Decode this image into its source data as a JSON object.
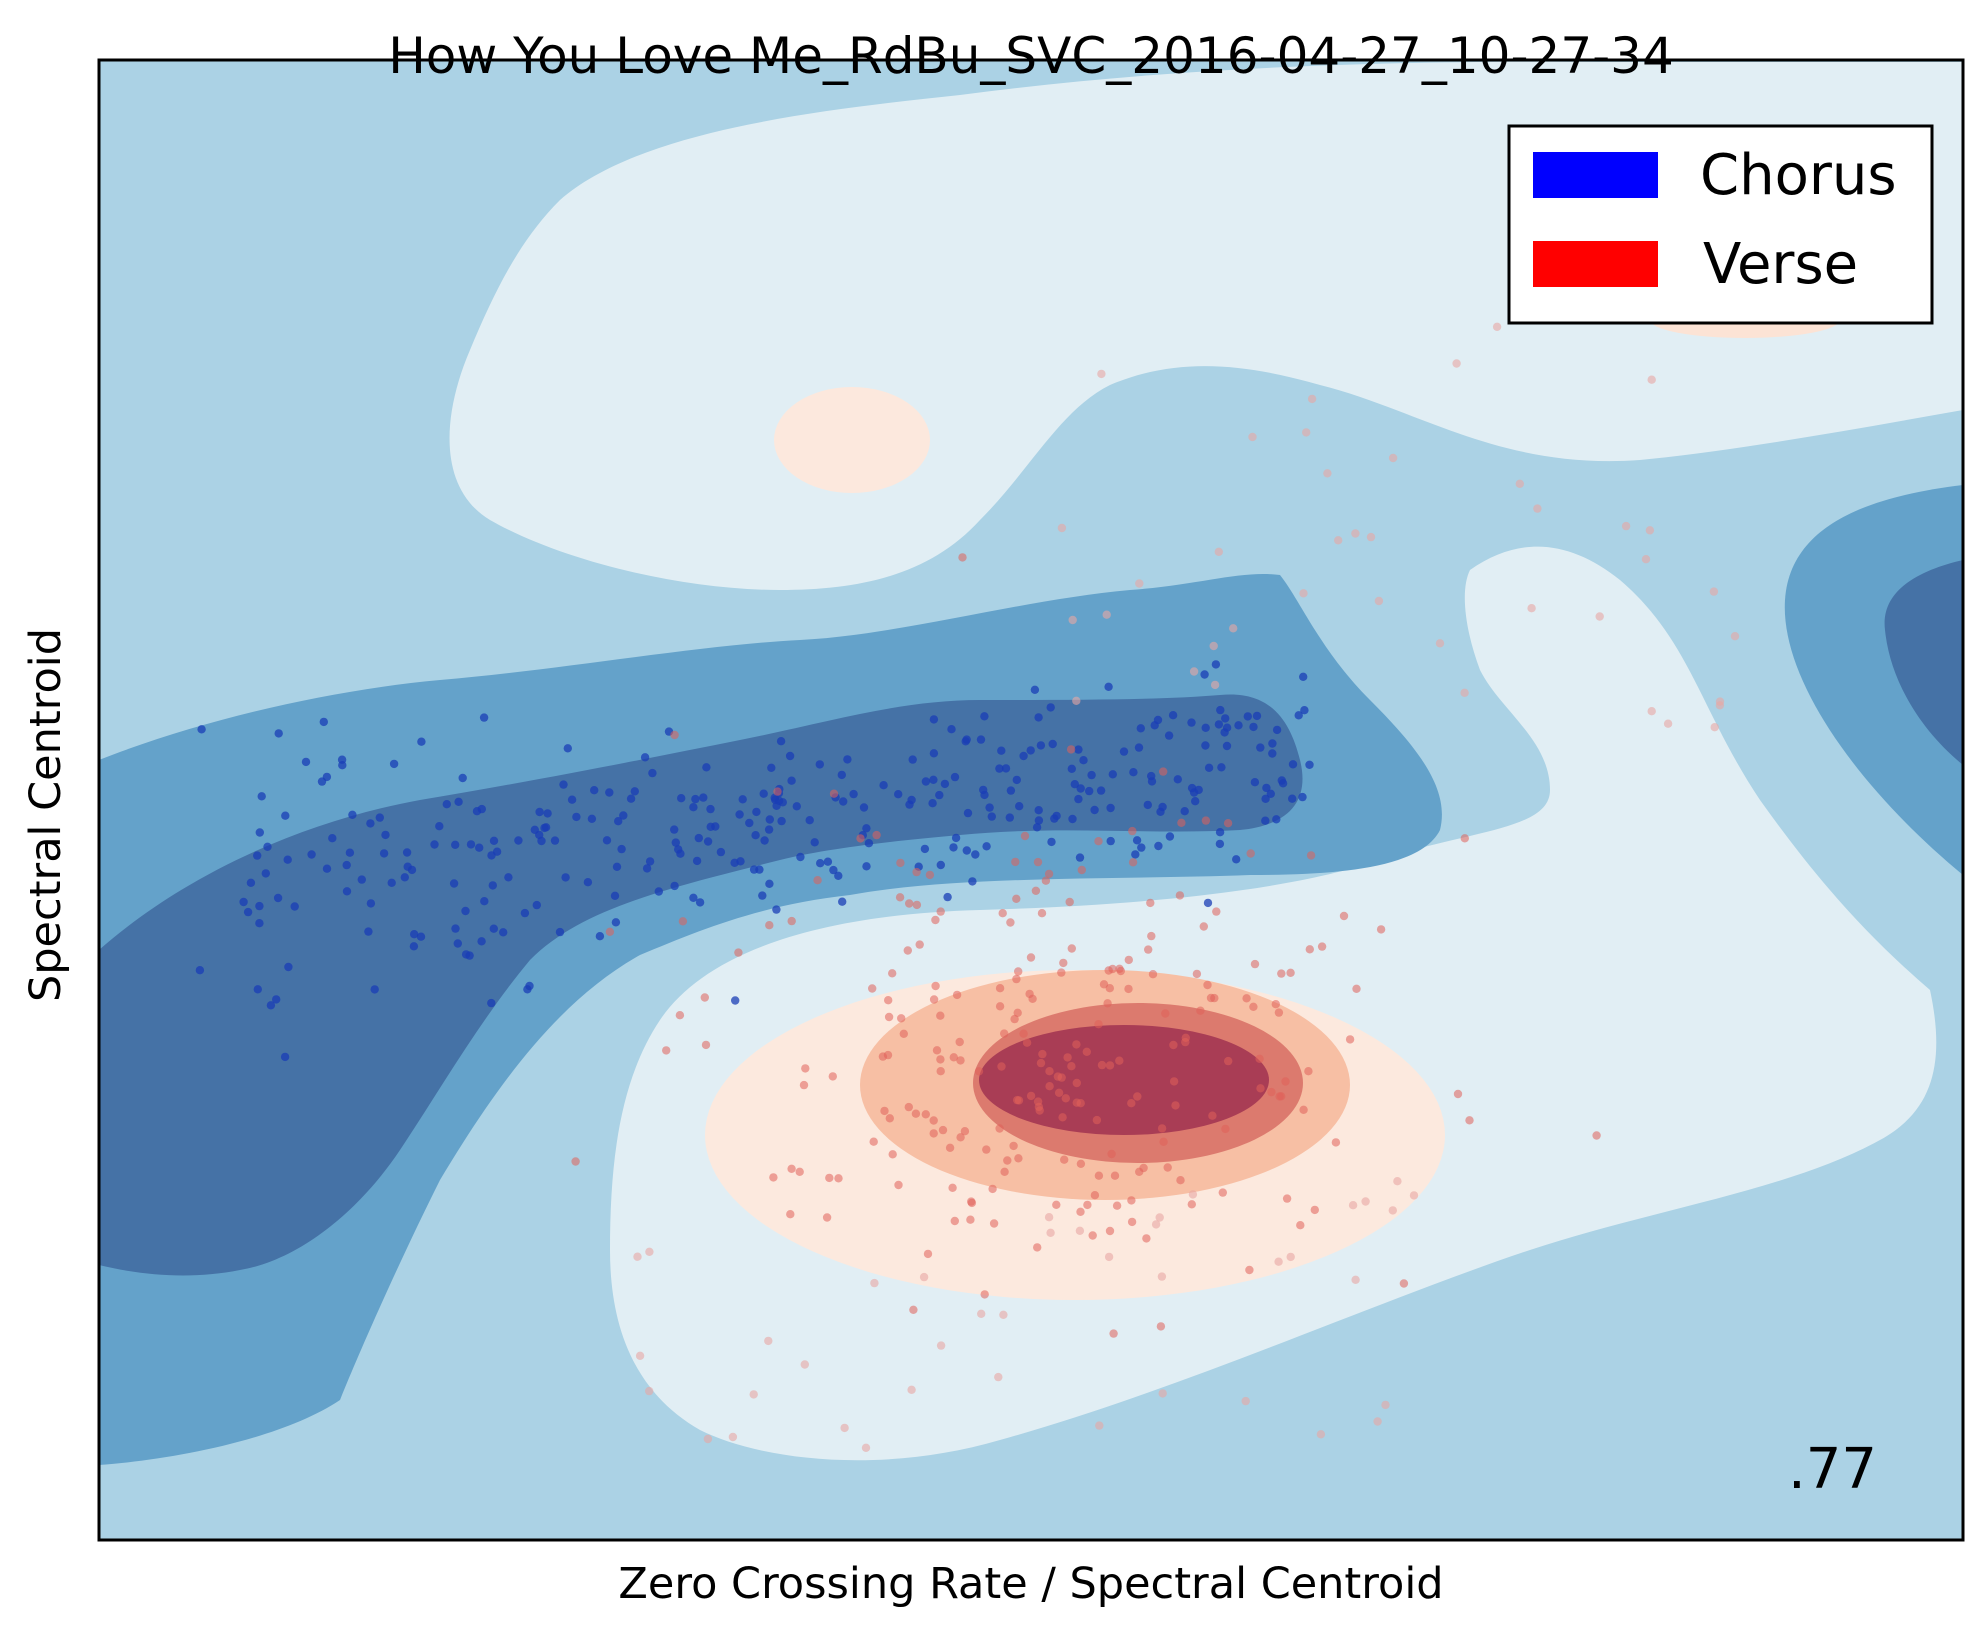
{
  "chart_data": {
    "type": "scatter",
    "title": "How You Love Me_RdBu_SVC_2016-04-27_10-27-34",
    "xlabel": "Zero Crossing Rate / Spectral Centroid",
    "ylabel": "Spectral Centroid",
    "xticks": [],
    "yticks": [],
    "score_label": ".77",
    "colormap": "RdBu",
    "background_contours": "SVC decision function (filled contours)",
    "legend": {
      "placement": "top-right",
      "entries": [
        {
          "label": "Chorus",
          "color": "#0000ff"
        },
        {
          "label": "Verse",
          "color": "#ff0000"
        }
      ]
    },
    "contour_colors": {
      "level_neg3": "#2166ac",
      "level_neg2": "#4393c3",
      "level_neg1": "#92c5de",
      "level_0": "#d1e5f0",
      "level_1": "#fddbc7",
      "level_2": "#f4a582",
      "level_3": "#d6604d",
      "level_4": "#b2182b"
    }
  }
}
